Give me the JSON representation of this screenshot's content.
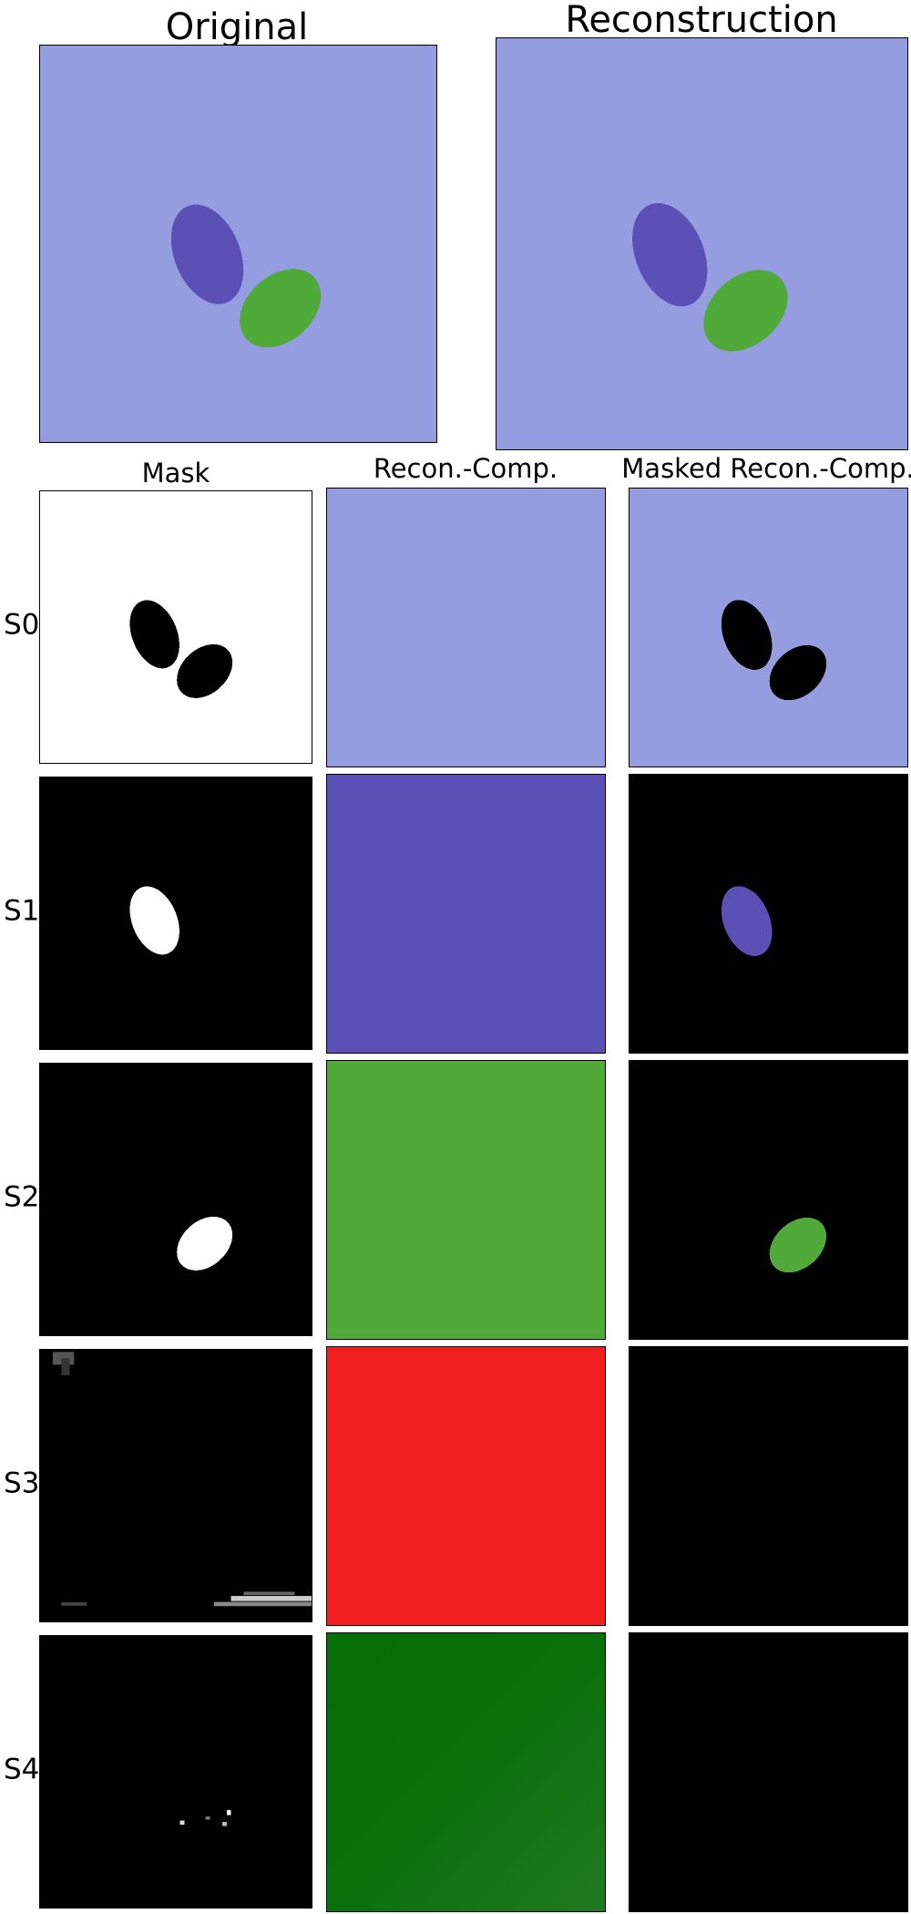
{
  "top": {
    "original_title": "Original",
    "reconstruction_title": "Reconstruction"
  },
  "columns": {
    "mask": "Mask",
    "recon_comp": "Recon.-Comp.",
    "masked_recon_comp": "Masked Recon.-Comp."
  },
  "rows": [
    "S0",
    "S1",
    "S2",
    "S3",
    "S4"
  ],
  "colors": {
    "background_lavender": "#959cdf",
    "object_purple": "#5b50b6",
    "object_green": "#50aa3a",
    "slot3_red": "#f01e1e",
    "slot4_dark_green": "#066e06",
    "mask_on": "#ffffff",
    "mask_off": "#000000"
  }
}
